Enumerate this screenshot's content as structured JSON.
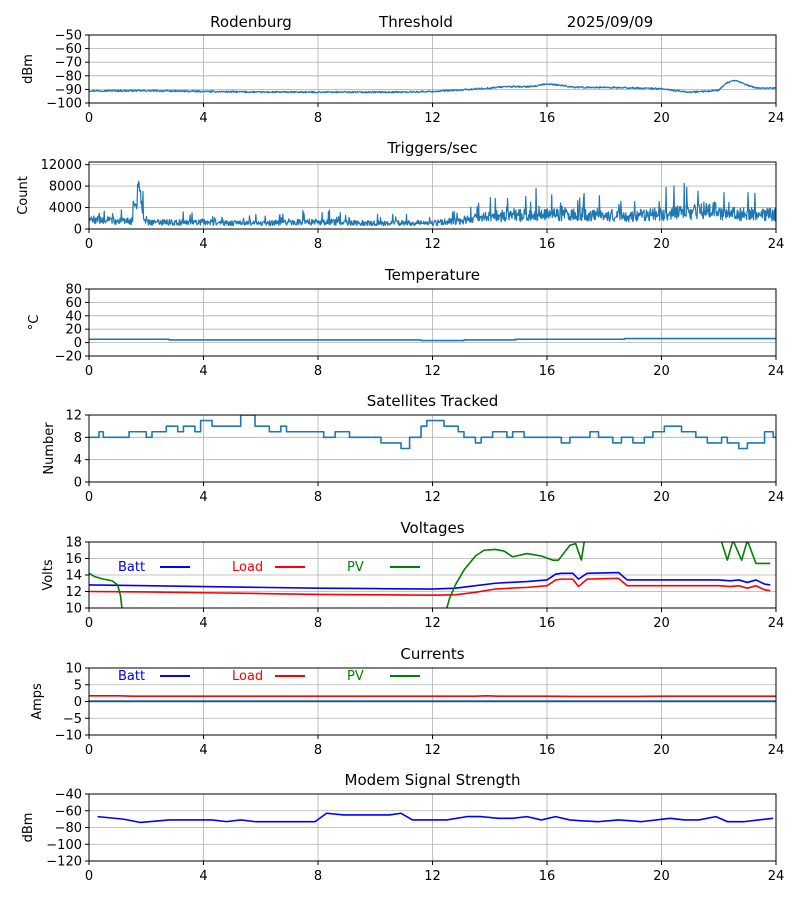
{
  "header": {
    "station": "Rodenburg",
    "mode": "Threshold",
    "date": "2025/09/09"
  },
  "chart_data": [
    {
      "type": "line",
      "title": "",
      "xlabel": "",
      "ylabel": "dBm",
      "xlim": [
        0,
        24
      ],
      "ylim": [
        -100,
        -50
      ],
      "xticks": [
        "0",
        "4",
        "8",
        "12",
        "16",
        "20",
        "24"
      ],
      "yticks": [
        "−50",
        "−60",
        "−70",
        "−80",
        "−90",
        "−100"
      ],
      "ytick_values": [
        -50,
        -60,
        -70,
        -80,
        -90,
        -100
      ],
      "grid": true,
      "series": [
        {
          "color": "#1f77b4",
          "noise": 0.6,
          "x": [
            0,
            2,
            4,
            6,
            8,
            10,
            11,
            12,
            13,
            14,
            14.5,
            15,
            15.5,
            16,
            16.5,
            17,
            18,
            19,
            20,
            20.5,
            21,
            21.5,
            22,
            22.3,
            22.6,
            22.9,
            23.3,
            24
          ],
          "y": [
            -91,
            -91,
            -91.5,
            -92,
            -92,
            -92,
            -92,
            -91.5,
            -90.5,
            -89,
            -88,
            -88,
            -88,
            -86,
            -87,
            -88.5,
            -88.5,
            -89,
            -89.5,
            -91,
            -92,
            -91.5,
            -90.5,
            -85,
            -83.5,
            -86,
            -89,
            -89
          ]
        }
      ]
    },
    {
      "type": "line",
      "title": "Triggers/sec",
      "xlabel": "",
      "ylabel": "Count",
      "xlim": [
        0,
        24
      ],
      "ylim": [
        0,
        12500
      ],
      "xticks": [
        "0",
        "4",
        "8",
        "12",
        "16",
        "20",
        "24"
      ],
      "yticks": [
        "12000",
        "8000",
        "4000",
        "0"
      ],
      "ytick_values": [
        12000,
        8000,
        4000,
        0
      ],
      "grid": true,
      "series": [
        {
          "color": "#1f77b4",
          "noise": 900,
          "x": [
            0,
            0.5,
            1,
            1.5,
            1.65,
            1.75,
            1.85,
            2,
            3,
            4,
            5,
            6,
            7,
            8,
            9,
            10,
            11,
            12,
            13,
            14,
            15,
            16,
            17,
            18,
            19,
            20,
            21,
            21.8,
            22,
            23,
            24
          ],
          "y": [
            1700,
            1700,
            1500,
            1400,
            5000,
            8000,
            4000,
            1300,
            1200,
            1300,
            1100,
            1000,
            1300,
            1300,
            1200,
            1100,
            1100,
            1100,
            1600,
            2300,
            2500,
            2700,
            2800,
            2600,
            2300,
            2900,
            3100,
            3800,
            2800,
            2800,
            2700
          ]
        }
      ]
    },
    {
      "type": "line",
      "title": "Temperature",
      "xlabel": "",
      "ylabel": "°C",
      "xlim": [
        0,
        24
      ],
      "ylim": [
        -20,
        80
      ],
      "xticks": [
        "0",
        "4",
        "8",
        "12",
        "16",
        "20",
        "24"
      ],
      "yticks": [
        "80",
        "60",
        "40",
        "20",
        "0",
        "−20"
      ],
      "ytick_values": [
        80,
        60,
        40,
        20,
        0,
        -20
      ],
      "grid": true,
      "series": [
        {
          "color": "#1f77b4",
          "x": [
            0,
            2.8,
            2.8,
            11.6,
            11.6,
            13.1,
            13.1,
            14.9,
            14.9,
            18.7,
            18.7,
            24
          ],
          "y": [
            5,
            5,
            4,
            4,
            3,
            3,
            4,
            4,
            5,
            5,
            6,
            6
          ]
        }
      ]
    },
    {
      "type": "line",
      "title": "Satellites Tracked",
      "xlabel": "",
      "ylabel": "Number",
      "xlim": [
        0,
        24
      ],
      "ylim": [
        0,
        12
      ],
      "xticks": [
        "0",
        "4",
        "8",
        "12",
        "16",
        "20",
        "24"
      ],
      "yticks": [
        "12",
        "8",
        "4",
        "0"
      ],
      "ytick_values": [
        12,
        8,
        4,
        0
      ],
      "grid": true,
      "series": [
        {
          "color": "#1f77b4",
          "x": [
            0,
            0.35,
            0.35,
            0.5,
            0.5,
            1.4,
            1.4,
            2,
            2,
            2.2,
            2.2,
            2.7,
            2.7,
            3.1,
            3.1,
            3.3,
            3.3,
            3.7,
            3.7,
            3.9,
            3.9,
            4.3,
            4.3,
            5.3,
            5.3,
            5.8,
            5.8,
            6.3,
            6.3,
            6.7,
            6.7,
            6.9,
            6.9,
            7.3,
            7.3,
            8.2,
            8.2,
            8.6,
            8.6,
            9.1,
            9.1,
            10.2,
            10.2,
            10.9,
            10.9,
            11.2,
            11.2,
            11.6,
            11.6,
            11.8,
            11.8,
            12.4,
            12.4,
            12.9,
            12.9,
            13.1,
            13.1,
            13.5,
            13.5,
            13.7,
            13.7,
            14.1,
            14.1,
            14.6,
            14.6,
            14.8,
            14.8,
            15.2,
            15.2,
            15.6,
            15.6,
            16.5,
            16.5,
            16.8,
            16.8,
            17.5,
            17.5,
            17.8,
            17.8,
            18.3,
            18.3,
            18.6,
            18.6,
            19,
            19,
            19.4,
            19.4,
            19.7,
            19.7,
            20.1,
            20.1,
            20.7,
            20.7,
            21.2,
            21.2,
            21.6,
            21.6,
            22.1,
            22.1,
            22.3,
            22.3,
            22.7,
            22.7,
            23,
            23,
            23.6,
            23.6,
            23.9,
            23.9,
            24
          ],
          "y": [
            8,
            8,
            9,
            9,
            8,
            8,
            9,
            9,
            8,
            8,
            9,
            9,
            10,
            10,
            9,
            9,
            10,
            10,
            9,
            9,
            11,
            11,
            10,
            10,
            12,
            12,
            10,
            10,
            9,
            9,
            10,
            10,
            9,
            9,
            9,
            9,
            8,
            8,
            9,
            9,
            8,
            8,
            7,
            7,
            6,
            6,
            8,
            8,
            10,
            10,
            11,
            11,
            10,
            10,
            9,
            9,
            8,
            8,
            7,
            7,
            8,
            8,
            9,
            9,
            8,
            8,
            9,
            9,
            8,
            8,
            8,
            8,
            7,
            7,
            8,
            8,
            9,
            9,
            8,
            8,
            7,
            7,
            8,
            8,
            7,
            7,
            8,
            8,
            9,
            9,
            10,
            10,
            9,
            9,
            8,
            8,
            7,
            7,
            8,
            8,
            7,
            7,
            6,
            6,
            7,
            7,
            9,
            9,
            8,
            8
          ]
        }
      ]
    },
    {
      "type": "line",
      "title": "Voltages",
      "xlabel": "",
      "ylabel": "Volts",
      "xlim": [
        0,
        24
      ],
      "ylim": [
        10,
        18
      ],
      "xticks": [
        "0",
        "4",
        "8",
        "12",
        "16",
        "20",
        "24"
      ],
      "yticks": [
        "18",
        "16",
        "14",
        "12",
        "10"
      ],
      "ytick_values": [
        18,
        16,
        14,
        12,
        10
      ],
      "grid": true,
      "legend": [
        {
          "name": "Batt",
          "color": "#0000ff"
        },
        {
          "name": "Load",
          "color": "#ff0000"
        },
        {
          "name": "PV",
          "color": "#008000"
        }
      ],
      "series": [
        {
          "name": "Batt",
          "color": "#0000ff",
          "x": [
            0,
            2,
            4,
            6,
            8,
            10,
            12,
            12.8,
            13.5,
            14.2,
            14.7,
            15.3,
            16,
            16.3,
            16.5,
            16.9,
            17.1,
            17.4,
            18.5,
            18.8,
            20,
            22,
            22.4,
            22.7,
            23,
            23.3,
            23.6,
            23.8
          ],
          "y": [
            12.8,
            12.7,
            12.6,
            12.5,
            12.4,
            12.35,
            12.3,
            12.4,
            12.7,
            13,
            13.1,
            13.2,
            13.4,
            14.1,
            14.2,
            14.2,
            13.5,
            14.2,
            14.3,
            13.4,
            13.4,
            13.4,
            13.3,
            13.4,
            13.1,
            13.4,
            12.9,
            12.8
          ]
        },
        {
          "name": "Load",
          "color": "#ff0000",
          "x": [
            0,
            2,
            4,
            6,
            8,
            10,
            12,
            12.8,
            13.5,
            14.2,
            14.7,
            15.3,
            16,
            16.3,
            16.5,
            16.9,
            17.1,
            17.4,
            18.5,
            18.8,
            20,
            22,
            22.4,
            22.7,
            23,
            23.3,
            23.6,
            23.8
          ],
          "y": [
            12,
            11.95,
            11.85,
            11.75,
            11.65,
            11.6,
            11.55,
            11.6,
            11.9,
            12.3,
            12.4,
            12.5,
            12.7,
            13.4,
            13.5,
            13.5,
            12.6,
            13.5,
            13.6,
            12.7,
            12.7,
            12.7,
            12.6,
            12.7,
            12.4,
            12.7,
            12.2,
            12.1
          ]
        },
        {
          "name": "PV",
          "color": "#008000",
          "x": [
            0,
            0.2,
            0.5,
            0.8,
            1,
            1.1,
            1.15
          ],
          "y": [
            14.2,
            13.8,
            13.5,
            13.3,
            12.8,
            11.5,
            10
          ]
        },
        {
          "name": "PV",
          "color": "#008000",
          "x": [
            12.5,
            12.6,
            12.8,
            13.1,
            13.5,
            13.8,
            14.2,
            14.5,
            14.8,
            15.3,
            15.8,
            16.2,
            16.4,
            16.8,
            17,
            17.2,
            17.3
          ],
          "y": [
            10,
            11.2,
            12.8,
            14.6,
            16.3,
            17,
            17.1,
            16.9,
            16.2,
            16.6,
            16.3,
            15.8,
            15.8,
            17.6,
            17.8,
            15.8,
            18
          ]
        },
        {
          "name": "PV",
          "color": "#008000",
          "x": [
            22.1,
            22.3,
            22.5,
            22.8,
            23,
            23.3,
            23.6,
            23.8
          ],
          "y": [
            18,
            15.8,
            18.2,
            15.8,
            18.2,
            15.4,
            15.4,
            15.4
          ]
        }
      ]
    },
    {
      "type": "line",
      "title": "Currents",
      "xlabel": "",
      "ylabel": "Amps",
      "xlim": [
        0,
        24
      ],
      "ylim": [
        -10,
        10
      ],
      "xticks": [
        "0",
        "4",
        "8",
        "12",
        "16",
        "20",
        "24"
      ],
      "yticks": [
        "10",
        "5",
        "0",
        "−5",
        "−10"
      ],
      "ytick_values": [
        10,
        5,
        0,
        -5,
        -10
      ],
      "grid": true,
      "legend": [
        {
          "name": "Batt",
          "color": "#0000ff"
        },
        {
          "name": "Load",
          "color": "#ff0000"
        },
        {
          "name": "PV",
          "color": "#008000"
        }
      ],
      "series": [
        {
          "name": "Batt",
          "color": "#0000ff",
          "x": [
            0,
            24
          ],
          "y": [
            0.1,
            0.1
          ]
        },
        {
          "name": "PV",
          "color": "#008000",
          "x": [
            0,
            24
          ],
          "y": [
            0,
            0
          ]
        },
        {
          "name": "Load",
          "color": "#ff0000",
          "x": [
            0,
            1,
            1.5,
            4,
            8,
            12,
            13.5,
            13.9,
            14.3,
            16,
            17,
            18,
            19,
            20,
            22,
            24
          ],
          "y": [
            1.7,
            1.7,
            1.6,
            1.6,
            1.6,
            1.6,
            1.6,
            1.7,
            1.6,
            1.6,
            1.5,
            1.5,
            1.5,
            1.6,
            1.6,
            1.6
          ]
        }
      ]
    },
    {
      "type": "line",
      "title": "Modem Signal Strength",
      "xlabel": "",
      "ylabel": "dBm",
      "xlim": [
        0,
        24
      ],
      "ylim": [
        -120,
        -40
      ],
      "xticks": [
        "0",
        "4",
        "8",
        "12",
        "16",
        "20",
        "24"
      ],
      "yticks": [
        "−40",
        "−60",
        "−80",
        "−100",
        "−120"
      ],
      "ytick_values": [
        -40,
        -60,
        -80,
        -100,
        -120
      ],
      "grid": true,
      "series": [
        {
          "color": "#0000ff",
          "x": [
            0.3,
            1.2,
            1.8,
            2.8,
            3.5,
            4.3,
            4.8,
            5.3,
            5.8,
            6.5,
            7.2,
            7.9,
            8.3,
            8.9,
            9.7,
            10.5,
            10.9,
            11.3,
            11.9,
            12.5,
            13.2,
            13.7,
            14.3,
            14.8,
            15.3,
            15.8,
            16.3,
            16.8,
            17.2,
            17.8,
            18.5,
            19.3,
            20.3,
            20.8,
            21.3,
            21.9,
            22.3,
            22.9,
            23.4,
            23.9
          ],
          "y": [
            -67,
            -70,
            -74,
            -71,
            -71,
            -71,
            -73,
            -71,
            -73,
            -73,
            -73,
            -73,
            -63,
            -65,
            -65,
            -65,
            -63,
            -71,
            -71,
            -71,
            -67,
            -67,
            -69,
            -69,
            -67,
            -71,
            -67,
            -71,
            -72,
            -73,
            -71,
            -73,
            -69,
            -71,
            -71,
            -67,
            -73,
            -73,
            -71,
            -69
          ]
        }
      ]
    }
  ]
}
